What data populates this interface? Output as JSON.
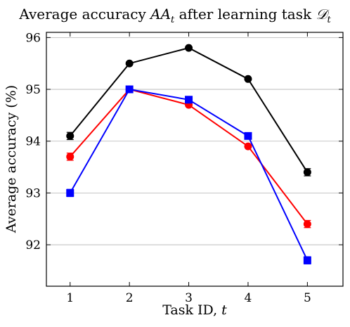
{
  "chart_data": {
    "type": "line",
    "title": {
      "prefix": "Average accuracy ",
      "symbol": "AA",
      "symbol_sub": "t",
      "middle": " after learning task ",
      "task_symbol": "𝒟",
      "task_sub": "t"
    },
    "xlabel": {
      "text": "Task ID, ",
      "var": "t"
    },
    "ylabel": "Average accuracy (%)",
    "x": [
      1,
      2,
      3,
      4,
      5
    ],
    "xticks": [
      "1",
      "2",
      "3",
      "4",
      "5"
    ],
    "yticks": [
      "92",
      "93",
      "94",
      "95",
      "96"
    ],
    "xlim": [
      0.6,
      5.6
    ],
    "ylim": [
      91.2,
      96.1
    ],
    "grid": "horizontal",
    "series": [
      {
        "color": "#000000",
        "marker": "circle",
        "values": [
          94.1,
          95.5,
          95.8,
          95.2,
          93.4
        ],
        "error": [
          0.07,
          0.0,
          0.0,
          0.0,
          0.07
        ]
      },
      {
        "color": "#ff0000",
        "marker": "circle",
        "values": [
          93.7,
          95.0,
          94.7,
          93.9,
          92.4
        ],
        "error": [
          0.07,
          0.0,
          0.0,
          0.0,
          0.07
        ]
      },
      {
        "color": "#0000ff",
        "marker": "square",
        "values": [
          93.0,
          95.0,
          94.8,
          94.1,
          91.7
        ],
        "error": [
          0.07,
          0.0,
          0.0,
          0.0,
          0.07
        ]
      }
    ]
  }
}
